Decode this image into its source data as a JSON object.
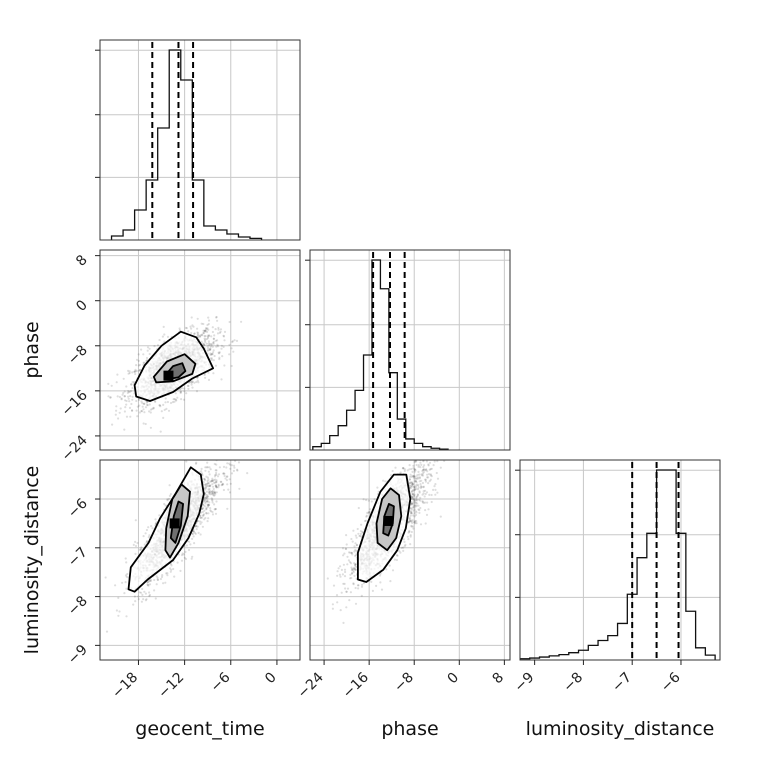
{
  "chart_data": {
    "type": "corner",
    "parameters": [
      "geocent_time",
      "phase",
      "luminosity_distance"
    ],
    "axis_labels": {
      "geocent_time": "geocent_time",
      "phase": "phase",
      "luminosity_distance": "luminosity_distance"
    },
    "ranges": {
      "geocent_time": [
        -23.0,
        3.0
      ],
      "phase": [
        -26.5,
        9.0
      ],
      "luminosity_distance": [
        -9.3,
        -5.2
      ]
    },
    "ticks": {
      "geocent_time": [
        -18,
        -12,
        -6,
        0
      ],
      "phase": [
        -24,
        -16,
        -8,
        0,
        8
      ],
      "luminosity_distance": [
        -9,
        -8,
        -7,
        -6
      ]
    },
    "tick_labels": {
      "geocent_time": [
        "−18",
        "−12",
        "−6",
        "0"
      ],
      "phase": [
        "−24",
        "−16",
        "−8",
        "0",
        "8"
      ],
      "luminosity_distance": [
        "−9",
        "−8",
        "−7",
        "−6"
      ]
    },
    "grid": true,
    "histograms": {
      "geocent_time": {
        "bins": [
          -21.5,
          -20.0,
          -18.5,
          -17.0,
          -15.5,
          -14.0,
          -12.5,
          -11.0,
          -9.5,
          -8.0,
          -6.5,
          -5.0,
          -3.5,
          -2.0
        ],
        "counts": [
          0.02,
          0.05,
          0.15,
          0.3,
          0.56,
          0.95,
          0.8,
          0.3,
          0.07,
          0.05,
          0.03,
          0.015,
          0.008
        ],
        "quantiles": [
          -16.2,
          -12.8,
          -10.9
        ]
      },
      "phase": {
        "bins": [
          -26.0,
          -24.5,
          -23.0,
          -21.5,
          -20.0,
          -18.5,
          -17.0,
          -15.5,
          -14.0,
          -12.5,
          -11.0,
          -9.5,
          -8.0,
          -6.5,
          -5.0,
          -3.5,
          -2.0
        ],
        "counts": [
          0.015,
          0.03,
          0.065,
          0.11,
          0.18,
          0.27,
          0.43,
          0.86,
          0.73,
          0.35,
          0.14,
          0.05,
          0.03,
          0.015,
          0.008,
          0.004
        ],
        "quantiles": [
          -15.3,
          -12.3,
          -9.7
        ]
      },
      "luminosity_distance": {
        "bins": [
          -9.3,
          -9.1,
          -8.9,
          -8.7,
          -8.5,
          -8.3,
          -8.1,
          -7.9,
          -7.7,
          -7.5,
          -7.3,
          -7.1,
          -6.9,
          -6.7,
          -6.5,
          -6.3,
          -6.1,
          -5.9,
          -5.7,
          -5.5,
          -5.3
        ],
        "counts": [
          0.005,
          0.008,
          0.012,
          0.017,
          0.022,
          0.03,
          0.04,
          0.06,
          0.08,
          0.1,
          0.15,
          0.27,
          0.42,
          0.52,
          0.78,
          0.78,
          0.52,
          0.2,
          0.05,
          0.02
        ],
        "quantiles": [
          -7.0,
          -6.5,
          -6.05
        ]
      }
    },
    "joint": [
      {
        "x": "geocent_time",
        "y": "phase",
        "center": [
          -13.5,
          -12.0
        ],
        "spread": [
          2.8,
          3.2
        ],
        "correlation": 0.62,
        "peak_cell": [
          -14.1,
          -13.3
        ],
        "contours": [
          [
            [
              -18.5,
              -15.0
            ],
            [
              -17.2,
              -11.5
            ],
            [
              -15.0,
              -8.0
            ],
            [
              -12.5,
              -5.5
            ],
            [
              -10.5,
              -6.5
            ],
            [
              -9.5,
              -8.5
            ],
            [
              -8.3,
              -12.0
            ],
            [
              -11.0,
              -13.8
            ],
            [
              -13.5,
              -16.2
            ],
            [
              -16.5,
              -17.8
            ],
            [
              -18.3,
              -17.0
            ]
          ],
          [
            [
              -16.0,
              -13.5
            ],
            [
              -14.3,
              -10.8
            ],
            [
              -12.0,
              -9.5
            ],
            [
              -10.6,
              -11.2
            ],
            [
              -11.0,
              -13.0
            ],
            [
              -13.5,
              -14.3
            ],
            [
              -15.7,
              -14.5
            ]
          ],
          [
            [
              -14.5,
              -13.2
            ],
            [
              -13.5,
              -11.6
            ],
            [
              -12.3,
              -11.1
            ],
            [
              -11.9,
              -12.5
            ],
            [
              -12.8,
              -13.6
            ],
            [
              -14.0,
              -13.9
            ]
          ]
        ]
      },
      {
        "x": "geocent_time",
        "y": "luminosity_distance",
        "center": [
          -12.8,
          -6.55
        ],
        "spread": [
          2.8,
          0.6
        ],
        "correlation": 0.85,
        "peak_cell": [
          -13.3,
          -6.5
        ],
        "contours": [
          [
            [
              -19.3,
              -7.85
            ],
            [
              -19.0,
              -7.4
            ],
            [
              -16.7,
              -6.9
            ],
            [
              -15.2,
              -6.4
            ],
            [
              -13.2,
              -5.9
            ],
            [
              -11.2,
              -5.35
            ],
            [
              -9.9,
              -5.5
            ],
            [
              -9.5,
              -5.9
            ],
            [
              -10.1,
              -6.3
            ],
            [
              -11.5,
              -6.8
            ],
            [
              -13.5,
              -7.25
            ],
            [
              -16.8,
              -7.65
            ],
            [
              -18.5,
              -7.9
            ]
          ],
          [
            [
              -14.5,
              -7.05
            ],
            [
              -14.4,
              -6.6
            ],
            [
              -13.6,
              -6.0
            ],
            [
              -12.4,
              -5.7
            ],
            [
              -11.3,
              -5.85
            ],
            [
              -11.6,
              -6.35
            ],
            [
              -12.8,
              -6.9
            ],
            [
              -13.9,
              -7.2
            ]
          ],
          [
            [
              -13.8,
              -6.8
            ],
            [
              -13.4,
              -6.35
            ],
            [
              -12.8,
              -6.05
            ],
            [
              -12.2,
              -6.1
            ],
            [
              -12.5,
              -6.55
            ],
            [
              -13.2,
              -6.9
            ]
          ]
        ]
      },
      {
        "x": "phase",
        "y": "luminosity_distance",
        "center": [
          -12.5,
          -6.5
        ],
        "spread": [
          3.6,
          0.6
        ],
        "correlation": 0.8,
        "peak_cell": [
          -12.6,
          -6.45
        ],
        "contours": [
          [
            [
              -18.0,
              -7.65
            ],
            [
              -18.0,
              -7.1
            ],
            [
              -16.3,
              -6.5
            ],
            [
              -14.0,
              -5.85
            ],
            [
              -11.6,
              -5.5
            ],
            [
              -9.4,
              -5.5
            ],
            [
              -8.7,
              -6.0
            ],
            [
              -9.5,
              -6.6
            ],
            [
              -11.0,
              -7.05
            ],
            [
              -13.5,
              -7.45
            ],
            [
              -16.5,
              -7.7
            ]
          ],
          [
            [
              -14.5,
              -6.9
            ],
            [
              -14.7,
              -6.5
            ],
            [
              -13.7,
              -6.0
            ],
            [
              -12.2,
              -5.78
            ],
            [
              -10.7,
              -5.92
            ],
            [
              -10.3,
              -6.35
            ],
            [
              -11.2,
              -6.8
            ],
            [
              -12.8,
              -7.05
            ]
          ],
          [
            [
              -13.5,
              -6.7
            ],
            [
              -13.3,
              -6.35
            ],
            [
              -12.5,
              -6.1
            ],
            [
              -11.6,
              -6.15
            ],
            [
              -11.8,
              -6.5
            ],
            [
              -12.6,
              -6.75
            ]
          ]
        ]
      }
    ]
  }
}
